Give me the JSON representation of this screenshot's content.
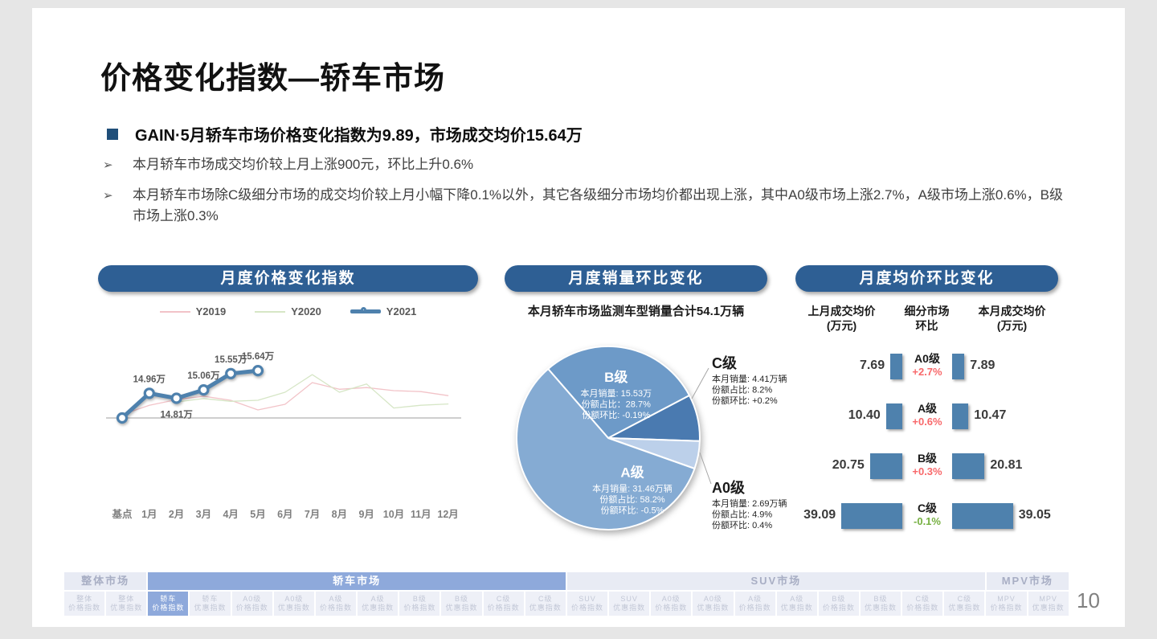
{
  "page": {
    "number": "10",
    "background": "#e6e6e6"
  },
  "title": "价格变化指数—轿车市场",
  "summary": {
    "bullet_icon": "blue-square",
    "headline": "GAIN·5月轿车市场价格变化指数为9.89，市场成交均价15.64万",
    "points": [
      "本月轿车市场成交均价较上月上涨900元，环比上升0.6%",
      "本月轿车市场除C级细分市场的成交均价较上月小幅下降0.1%以外，其它各级细分市场均价都出现上涨，其中A0级市场上涨2.7%，A级市场上涨0.6%，B级市场上涨0.3%"
    ]
  },
  "panels": {
    "price_index": {
      "title": "月度价格变化指数"
    },
    "sales_share": {
      "title": "月度销量环比变化",
      "subtitle": "本月轿车市场监测车型销量合计54.1万辆"
    },
    "avg_price": {
      "title": "月度均价环比变化",
      "col_headers": [
        [
          "上月成交均价",
          "(万元)"
        ],
        [
          "细分市场",
          "环比"
        ],
        [
          "本月成交均价",
          "(万元)"
        ]
      ]
    }
  },
  "colors": {
    "accent_blue": "#2e5f94",
    "bullet_navy": "#1f4e79",
    "series_2019": "#f2c3c8",
    "series_2020": "#d6e6c6",
    "series_2021": "#4e81ad",
    "bar_blue": "#4e81ad",
    "up_red": "#f8696b",
    "down_green": "#76b041",
    "nav_active": "#8ea9db"
  },
  "chart_data": [
    {
      "type": "line",
      "title": "月度价格变化指数",
      "categories": [
        "基点",
        "1月",
        "2月",
        "3月",
        "4月",
        "5月",
        "6月",
        "7月",
        "8月",
        "9月",
        "10月",
        "11月",
        "12月"
      ],
      "ylim": [
        13.6,
        16.0
      ],
      "baseline_value": 14.22,
      "grid": false,
      "legend_position": "top-center",
      "series": [
        {
          "name": "Y2019",
          "color": "#f2c3c8",
          "width": 1.3,
          "values": [
            14.32,
            14.6,
            14.77,
            14.87,
            14.75,
            14.46,
            14.63,
            15.28,
            15.08,
            15.13,
            15.04,
            15.01,
            14.89
          ]
        },
        {
          "name": "Y2020",
          "color": "#d6e6c6",
          "width": 1.3,
          "values": [
            null,
            null,
            14.7,
            14.8,
            14.72,
            14.75,
            14.99,
            15.52,
            14.99,
            15.24,
            14.52,
            14.6,
            14.64
          ]
        },
        {
          "name": "Y2021",
          "color": "#4e81ad",
          "width": 5,
          "marker": true,
          "values": [
            14.22,
            14.96,
            14.81,
            15.06,
            15.55,
            15.64,
            null,
            null,
            null,
            null,
            null,
            null,
            null
          ],
          "labels": [
            null,
            "14.96万",
            "14.81万",
            "15.06万",
            "15.55万",
            "15.64万",
            null,
            null,
            null,
            null,
            null,
            null,
            null
          ],
          "label_side": [
            "",
            "above",
            "below",
            "above",
            "above",
            "above",
            "",
            "",
            "",
            "",
            "",
            "",
            ""
          ]
        }
      ]
    },
    {
      "type": "pie",
      "title": "月度销量环比变化",
      "subtitle": "本月轿车市场监测车型销量合计54.1万辆",
      "start_angle": -41,
      "slices": [
        {
          "name": "B级",
          "value_pct": 28.7,
          "color": "#6d9ac8",
          "label": "inside",
          "lines": [
            "本月销量: 15.53万",
            "份额占比：28.7%",
            "份额环比: -0.19%"
          ],
          "label_angle": 9,
          "label_r": 0.55
        },
        {
          "name": "C级",
          "value_pct": 8.2,
          "color": "#4a7ab0",
          "label": "outside",
          "lines": [
            "本月销量: 4.41万辆",
            "份额占比: 8.2%",
            "份额环比: +0.2%"
          ],
          "block": {
            "x": 258,
            "y": 46
          },
          "leader": [
            [
              233,
              84
            ],
            [
              254,
              46
            ]
          ]
        },
        {
          "name": "A0级",
          "value_pct": 4.9,
          "color": "#bcd0ea",
          "label": "outside",
          "lines": [
            "本月销量: 2.69万辆",
            "份额占比: 4.9%",
            "份额环比: 0.4%"
          ],
          "block": {
            "x": 258,
            "y": 201
          },
          "leader": [
            [
              243,
              151
            ],
            [
              257,
              190
            ]
          ]
        },
        {
          "name": "A级",
          "value_pct": 58.2,
          "color": "#85abd3",
          "label": "inside",
          "lines": [
            "本月销量: 31.46万辆",
            "份额占比: 58.2%",
            "份额环比: -0.5%"
          ],
          "label_angle": 152,
          "label_r": 0.56
        }
      ]
    },
    {
      "type": "bar",
      "subtype": "tornado",
      "title": "月度均价环比变化",
      "unit": "万元",
      "rows": [
        {
          "segment": "A0级",
          "prev": "7.69",
          "prev_v": 7.69,
          "mom": "+2.7%",
          "mom_color": "#f8696b",
          "curr": "7.89",
          "curr_v": 7.89
        },
        {
          "segment": "A级",
          "prev": "10.40",
          "prev_v": 10.4,
          "mom": "+0.6%",
          "mom_color": "#f8696b",
          "curr": "10.47",
          "curr_v": 10.47
        },
        {
          "segment": "B级",
          "prev": "20.75",
          "prev_v": 20.75,
          "mom": "+0.3%",
          "mom_color": "#f8696b",
          "curr": "20.81",
          "curr_v": 20.81
        },
        {
          "segment": "C级",
          "prev": "39.09",
          "prev_v": 39.09,
          "mom": "-0.1%",
          "mom_color": "#76b041",
          "curr": "39.05",
          "curr_v": 39.05
        }
      ]
    }
  ],
  "nav": {
    "groups": [
      {
        "label": "整体市场",
        "active": false,
        "tabs": [
          {
            "l1": "整体",
            "l2": "价格指数"
          },
          {
            "l1": "整体",
            "l2": "优惠指数"
          }
        ]
      },
      {
        "label": "轿车市场",
        "active": true,
        "tabs": [
          {
            "l1": "轿车",
            "l2": "价格指数",
            "active": true
          },
          {
            "l1": "轿车",
            "l2": "优惠指数"
          },
          {
            "l1": "A0级",
            "l2": "价格指数"
          },
          {
            "l1": "A0级",
            "l2": "优惠指数"
          },
          {
            "l1": "A级",
            "l2": "价格指数"
          },
          {
            "l1": "A级",
            "l2": "优惠指数"
          },
          {
            "l1": "B级",
            "l2": "价格指数"
          },
          {
            "l1": "B级",
            "l2": "优惠指数"
          },
          {
            "l1": "C级",
            "l2": "价格指数"
          },
          {
            "l1": "C级",
            "l2": "优惠指数"
          }
        ]
      },
      {
        "label": "SUV市场",
        "active": false,
        "tabs": [
          {
            "l1": "SUV",
            "l2": "价格指数"
          },
          {
            "l1": "SUV",
            "l2": "优惠指数"
          },
          {
            "l1": "A0级",
            "l2": "价格指数"
          },
          {
            "l1": "A0级",
            "l2": "优惠指数"
          },
          {
            "l1": "A级",
            "l2": "价格指数"
          },
          {
            "l1": "A级",
            "l2": "优惠指数"
          },
          {
            "l1": "B级",
            "l2": "价格指数"
          },
          {
            "l1": "B级",
            "l2": "优惠指数"
          },
          {
            "l1": "C级",
            "l2": "价格指数"
          },
          {
            "l1": "C级",
            "l2": "优惠指数"
          }
        ]
      },
      {
        "label": "MPV市场",
        "active": false,
        "tabs": [
          {
            "l1": "MPV",
            "l2": "价格指数"
          },
          {
            "l1": "MPV",
            "l2": "优惠指数"
          }
        ]
      }
    ]
  }
}
